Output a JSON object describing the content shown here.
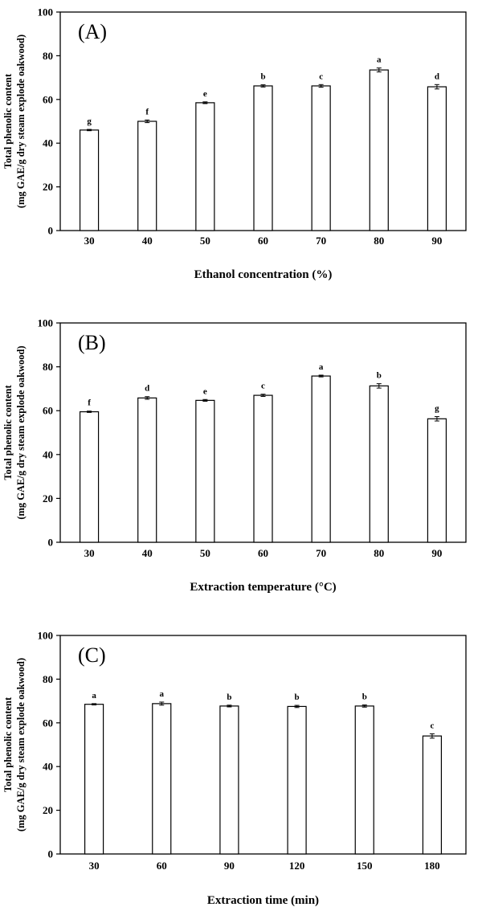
{
  "chart_data": [
    {
      "type": "bar",
      "panel_label": "(A)",
      "categories": [
        "30",
        "40",
        "50",
        "60",
        "70",
        "80",
        "90"
      ],
      "values": [
        46,
        50,
        58.5,
        66.2,
        66.2,
        73.5,
        65.8
      ],
      "errors": [
        0.3,
        0.6,
        0.4,
        0.5,
        0.6,
        0.9,
        1.0
      ],
      "letters": [
        "g",
        "f",
        "e",
        "b",
        "c",
        "a",
        "d"
      ],
      "xlabel": "Ethanol concentration (%)",
      "ylabel": [
        "Total phenolic content",
        "(mg GAE/g dry steam explode oakwood)"
      ],
      "ylim": [
        0,
        100
      ],
      "yticks": [
        0,
        20,
        40,
        60,
        80,
        100
      ],
      "grid": false
    },
    {
      "type": "bar",
      "panel_label": "(B)",
      "categories": [
        "30",
        "40",
        "50",
        "60",
        "70",
        "80",
        "90"
      ],
      "values": [
        59.5,
        65.8,
        64.7,
        67,
        75.8,
        71.3,
        56.3
      ],
      "errors": [
        0.3,
        0.6,
        0.4,
        0.5,
        0.4,
        1.0,
        1.0
      ],
      "letters": [
        "f",
        "d",
        "e",
        "c",
        "a",
        "b",
        "g"
      ],
      "xlabel": "Extraction temperature (°C)",
      "ylabel": [
        "Total phenolic content",
        "(mg GAE/g dry steam explode oakwood)"
      ],
      "ylim": [
        0,
        100
      ],
      "yticks": [
        0,
        20,
        40,
        60,
        80,
        100
      ],
      "grid": false
    },
    {
      "type": "bar",
      "panel_label": "(C)",
      "categories": [
        "30",
        "60",
        "90",
        "120",
        "150",
        "180"
      ],
      "values": [
        68.5,
        68.8,
        67.7,
        67.5,
        67.7,
        54
      ],
      "errors": [
        0.3,
        0.7,
        0.4,
        0.5,
        0.5,
        1.0
      ],
      "letters": [
        "a",
        "a",
        "b",
        "b",
        "b",
        "c"
      ],
      "xlabel": "Extraction time (min)",
      "ylabel": [
        "Total phenolic content",
        "(mg GAE/g dry steam explode oakwood)"
      ],
      "ylim": [
        0,
        100
      ],
      "yticks": [
        0,
        20,
        40,
        60,
        80,
        100
      ],
      "grid": false
    }
  ]
}
